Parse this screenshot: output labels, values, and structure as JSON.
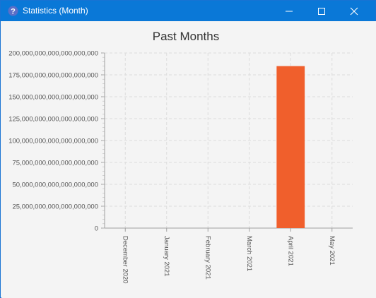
{
  "window": {
    "title": "Statistics (Month)",
    "icon": "help-question-icon",
    "controls": [
      "minimize-icon",
      "maximize-icon",
      "close-icon"
    ]
  },
  "chart_data": {
    "type": "bar",
    "title": "Past Months",
    "xlabel": "",
    "ylabel": "",
    "categories": [
      "December 2020",
      "January 2021",
      "February 2021",
      "March 2021",
      "April 2021",
      "May 2021"
    ],
    "values": [
      0,
      0,
      0,
      0,
      185000000000000000000,
      0
    ],
    "ylim": [
      0,
      200000000000000000000
    ],
    "yticks": [
      "0",
      "25,000,000,000,000,000,000",
      "50,000,000,000,000,000,000",
      "75,000,000,000,000,000,000",
      "100,000,000,000,000,000,000",
      "125,000,000,000,000,000,000",
      "150,000,000,000,000,000,000",
      "175,000,000,000,000,000,000",
      "200,000,000,000,000,000,000"
    ],
    "grid": true,
    "bar_color": "#f05f2c"
  }
}
